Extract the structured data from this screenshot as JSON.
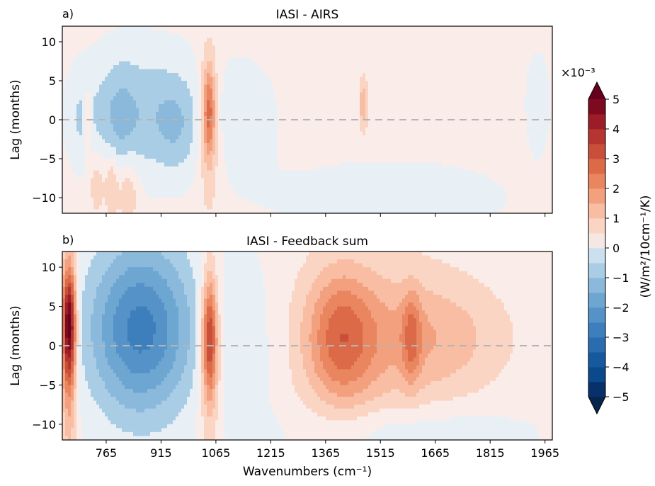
{
  "chart_data": {
    "type": "heatmap",
    "xlabel": "Wavenumbers (cm⁻¹)",
    "x_ticks": [
      765,
      915,
      1065,
      1215,
      1365,
      1515,
      1665,
      1815,
      1965
    ],
    "x_range": [
      645,
      1985
    ],
    "colorbar": {
      "label": "(W/m²/10cm⁻¹/K)",
      "exponent_label": "×10⁻³",
      "ticks": [
        5,
        4,
        3,
        2,
        1,
        0,
        -1,
        -2,
        -3,
        -4,
        -5
      ],
      "range": [
        -5,
        5
      ],
      "colormap": "RdBu_r",
      "extend": "both"
    },
    "panels": [
      {
        "letter": "a)",
        "title": "IASI - AIRS",
        "ylabel": "Lag (months)",
        "y_ticks": [
          10,
          5,
          0,
          -5,
          -10
        ],
        "y_range": [
          -12,
          12
        ],
        "zero_line": true,
        "features": [
          {
            "kind": "base",
            "value": 0.2
          },
          {
            "kind": "blob",
            "x": 870,
            "y": 1,
            "sx": 120,
            "sy": 6,
            "value": -1.0
          },
          {
            "kind": "blob",
            "x": 800,
            "y": 0,
            "sx": 35,
            "sy": 5,
            "value": -0.6
          },
          {
            "kind": "blob",
            "x": 700,
            "y": 0,
            "sx": 25,
            "sy": 4,
            "value": -0.5
          },
          {
            "kind": "blob",
            "x": 955,
            "y": -1,
            "sx": 40,
            "sy": 4,
            "value": -0.6
          },
          {
            "kind": "blob",
            "x": 1046,
            "y": 1,
            "sx": 12,
            "sy": 4,
            "value": 2.2
          },
          {
            "kind": "blob",
            "x": 1046,
            "y": -1,
            "sx": 22,
            "sy": 8,
            "value": 0.9
          },
          {
            "kind": "blob",
            "x": 1150,
            "y": 0,
            "sx": 70,
            "sy": 6,
            "value": -0.4
          },
          {
            "kind": "blob",
            "x": 715,
            "y": 0,
            "sx": 8,
            "sy": 3,
            "value": 1.1
          },
          {
            "kind": "blob",
            "x": 740,
            "y": -8,
            "sx": 15,
            "sy": 3,
            "value": 0.8
          },
          {
            "kind": "blob",
            "x": 780,
            "y": -8,
            "sx": 12,
            "sy": 3,
            "value": 1.0
          },
          {
            "kind": "blob",
            "x": 825,
            "y": -9,
            "sx": 20,
            "sy": 3,
            "value": 0.9
          },
          {
            "kind": "blob",
            "x": 1468,
            "y": 2,
            "sx": 8,
            "sy": 2.5,
            "value": 1.2
          },
          {
            "kind": "blob",
            "x": 1545,
            "y": -10,
            "sx": 200,
            "sy": 3,
            "value": -0.7
          },
          {
            "kind": "blob",
            "x": 1945,
            "y": 2,
            "sx": 25,
            "sy": 5,
            "value": -0.5
          }
        ]
      },
      {
        "letter": "b)",
        "title": "IASI - Feedback sum",
        "ylabel": "Lag (months)",
        "y_ticks": [
          10,
          5,
          0,
          -5,
          -10
        ],
        "y_range": [
          -12,
          12
        ],
        "zero_line": true,
        "features": [
          {
            "kind": "base",
            "value": 0.2
          },
          {
            "kind": "blob",
            "x": 663,
            "y": 3,
            "sx": 13,
            "sy": 5,
            "value": 4.0
          },
          {
            "kind": "blob",
            "x": 663,
            "y": -2,
            "sx": 15,
            "sy": 9,
            "value": 1.7
          },
          {
            "kind": "blob",
            "x": 860,
            "y": 2,
            "sx": 95,
            "sy": 7,
            "value": -2.2
          },
          {
            "kind": "blob",
            "x": 860,
            "y": 3,
            "sx": 130,
            "sy": 12,
            "value": -0.7
          },
          {
            "kind": "blob",
            "x": 1048,
            "y": 1,
            "sx": 14,
            "sy": 5,
            "value": 2.8
          },
          {
            "kind": "blob",
            "x": 1048,
            "y": -1,
            "sx": 22,
            "sy": 9,
            "value": 1.2
          },
          {
            "kind": "blob",
            "x": 1145,
            "y": 0,
            "sx": 60,
            "sy": 9,
            "value": -0.5
          },
          {
            "kind": "blob",
            "x": 1405,
            "y": 1,
            "sx": 65,
            "sy": 6,
            "value": 2.0
          },
          {
            "kind": "blob",
            "x": 1510,
            "y": 1,
            "sx": 140,
            "sy": 7,
            "value": 1.0
          },
          {
            "kind": "blob",
            "x": 1600,
            "y": 1,
            "sx": 18,
            "sy": 4,
            "value": 1.4
          },
          {
            "kind": "blob",
            "x": 1700,
            "y": 1,
            "sx": 120,
            "sy": 5,
            "value": 0.8
          },
          {
            "kind": "blob",
            "x": 1600,
            "y": -11,
            "sx": 240,
            "sy": 2.5,
            "value": -0.6
          }
        ]
      }
    ]
  }
}
